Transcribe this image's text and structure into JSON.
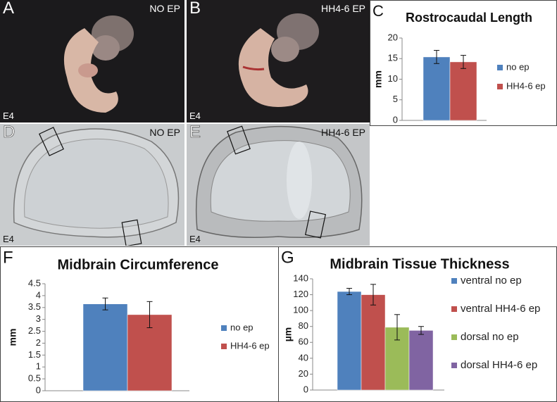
{
  "photos": [
    {
      "letter": "A",
      "tag": "NO EP",
      "stage": "E4"
    },
    {
      "letter": "B",
      "tag": "HH4-6 EP",
      "stage": "E4"
    },
    {
      "letter": "D",
      "tag": "NO EP",
      "stage": "E4"
    },
    {
      "letter": "E",
      "tag": "HH4-6 EP",
      "stage": "E4"
    }
  ],
  "chart_data": [
    {
      "type": "bar",
      "panel": "C",
      "title": "Rostrocaudal Length",
      "y_label": "mm",
      "categories": [
        null
      ],
      "ylim": [
        0,
        20
      ],
      "yticks": [
        0,
        5,
        10,
        15,
        20
      ],
      "legend": "right",
      "series": [
        {
          "name": "no ep",
          "color": "#4f81bd",
          "values": [
            15.4
          ],
          "errors": [
            1.6
          ]
        },
        {
          "name": "HH4-6 ep",
          "color": "#c0504d",
          "values": [
            14.2
          ],
          "errors": [
            1.6
          ]
        }
      ]
    },
    {
      "type": "bar",
      "panel": "F",
      "title": "Midbrain Circumference",
      "y_label": "mm",
      "categories": [
        null
      ],
      "ylim": [
        0,
        4.5
      ],
      "yticks": [
        0,
        0.5,
        1,
        1.5,
        2,
        2.5,
        3,
        3.5,
        4,
        4.5
      ],
      "legend": "right",
      "series": [
        {
          "name": "no ep",
          "color": "#4f81bd",
          "values": [
            3.65
          ],
          "errors": [
            0.25
          ]
        },
        {
          "name": "HH4-6 ep",
          "color": "#c0504d",
          "values": [
            3.2
          ],
          "errors": [
            0.55
          ]
        }
      ]
    },
    {
      "type": "bar",
      "panel": "G",
      "title": "Midbrain Tissue Thickness",
      "y_label": "µm",
      "categories": [
        null
      ],
      "ylim": [
        0,
        140
      ],
      "yticks": [
        0,
        20,
        40,
        60,
        80,
        100,
        120,
        140
      ],
      "legend": "right",
      "series": [
        {
          "name": "ventral no ep",
          "color": "#4f81bd",
          "values": [
            124
          ],
          "errors": [
            4
          ]
        },
        {
          "name": "ventral HH4-6 ep",
          "color": "#c0504d",
          "values": [
            120
          ],
          "errors": [
            13
          ]
        },
        {
          "name": "dorsal no ep",
          "color": "#9bbb59",
          "values": [
            79
          ],
          "errors": [
            16
          ]
        },
        {
          "name": "dorsal HH4-6 ep",
          "color": "#8064a2",
          "values": [
            75
          ],
          "errors": [
            5
          ]
        }
      ]
    }
  ]
}
